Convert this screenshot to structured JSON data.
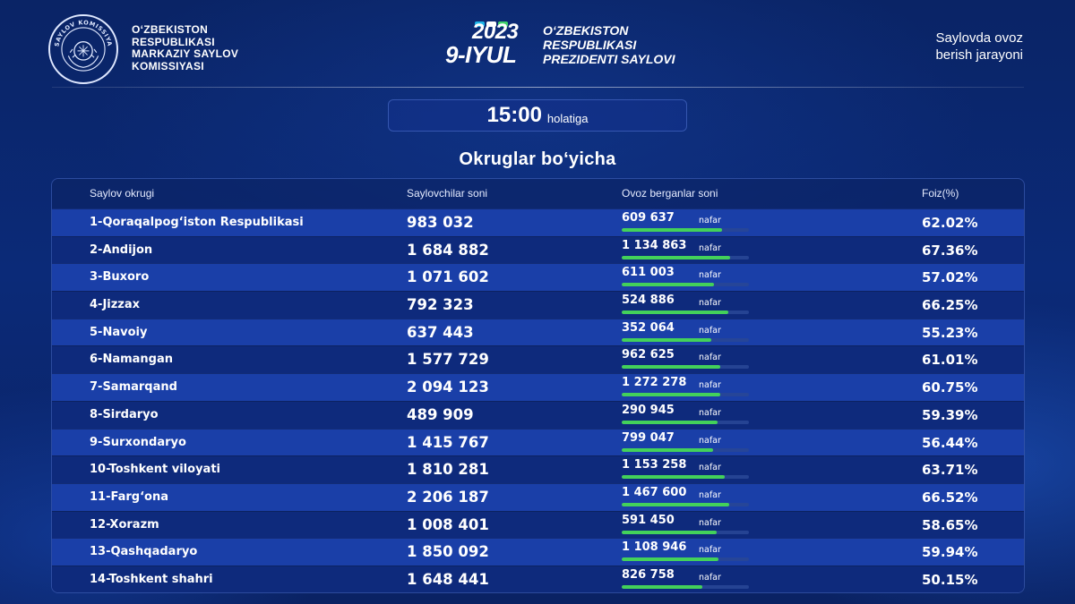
{
  "header": {
    "cec_lines": [
      "O‘ZBEKISTON",
      "RESPUBLIKASI",
      "MARKAZIY SAYLOV",
      "KOMISSIYASI"
    ],
    "emblem_text": "SAYLOV KOMISSIYASI",
    "event_year": "2023",
    "event_date": "9-IYUL",
    "event_title_lines": [
      "O‘ZBEKISTON",
      "RESPUBLIKASI",
      "PREZIDENTI SAYLOVI"
    ],
    "right_lines": [
      "Saylovda ovoz",
      "berish jarayoni"
    ]
  },
  "time": {
    "value": "15:00",
    "suffix": "holatiga"
  },
  "section_title": "Okruglar bo‘yicha",
  "table": {
    "headers": {
      "district": "Saylov okrugi",
      "voters": "Saylovchilar soni",
      "voted": "Ovoz berganlar soni",
      "percent": "Foiz(%)"
    },
    "unit": "nafar",
    "rows": [
      {
        "name": "1-Qoraqalpog‘iston Respublikasi",
        "voters": "983 032",
        "voted": "609 637",
        "percent": "62.02%",
        "fraction": 0.6202
      },
      {
        "name": "2-Andijon",
        "voters": "1 684 882",
        "voted": "1 134 863",
        "percent": "67.36%",
        "fraction": 0.6736
      },
      {
        "name": "3-Buxoro",
        "voters": "1 071 602",
        "voted": "611 003",
        "percent": "57.02%",
        "fraction": 0.5702
      },
      {
        "name": "4-Jizzax",
        "voters": "792 323",
        "voted": "524 886",
        "percent": "66.25%",
        "fraction": 0.6625
      },
      {
        "name": "5-Navoiy",
        "voters": "637 443",
        "voted": "352 064",
        "percent": "55.23%",
        "fraction": 0.5523
      },
      {
        "name": "6-Namangan",
        "voters": "1 577 729",
        "voted": "962 625",
        "percent": "61.01%",
        "fraction": 0.6101
      },
      {
        "name": "7-Samarqand",
        "voters": "2 094 123",
        "voted": "1 272 278",
        "percent": "60.75%",
        "fraction": 0.6075
      },
      {
        "name": "8-Sirdaryo",
        "voters": "489 909",
        "voted": "290 945",
        "percent": "59.39%",
        "fraction": 0.5939
      },
      {
        "name": "9-Surxondaryo",
        "voters": "1 415 767",
        "voted": "799 047",
        "percent": "56.44%",
        "fraction": 0.5644
      },
      {
        "name": "10-Toshkent viloyati",
        "voters": "1 810 281",
        "voted": "1 153 258",
        "percent": "63.71%",
        "fraction": 0.6371
      },
      {
        "name": "11-Farg‘ona",
        "voters": "2 206 187",
        "voted": "1 467 600",
        "percent": "66.52%",
        "fraction": 0.6652
      },
      {
        "name": "12-Xorazm",
        "voters": "1 008 401",
        "voted": "591 450",
        "percent": "58.65%",
        "fraction": 0.5865
      },
      {
        "name": "13-Qashqadaryo",
        "voters": "1 850 092",
        "voted": "1 108 946",
        "percent": "59.94%",
        "fraction": 0.5994
      },
      {
        "name": "14-Toshkent shahri",
        "voters": "1 648 441",
        "voted": "826 758",
        "percent": "50.15%",
        "fraction": 0.5015
      }
    ]
  },
  "colors": {
    "background": "#0b2a78",
    "row_light": "#1a3fa8",
    "row_dark": "#0e2a7c",
    "progress": "#43d15a",
    "flag_blue": "#1eb5e8",
    "flag_green": "#3fd16a"
  }
}
